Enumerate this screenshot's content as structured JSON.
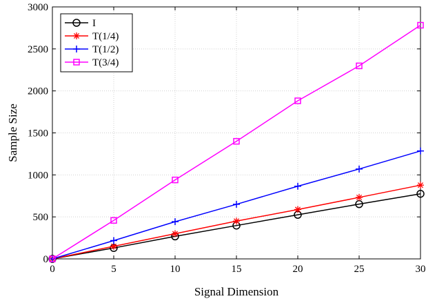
{
  "chart_data": {
    "type": "line",
    "xlabel": "Signal Dimension",
    "ylabel": "Sample Size",
    "xlim": [
      0,
      30
    ],
    "ylim": [
      0,
      3000
    ],
    "xticks": [
      0,
      5,
      10,
      15,
      20,
      25,
      30
    ],
    "yticks": [
      0,
      500,
      1000,
      1500,
      2000,
      2500,
      3000
    ],
    "grid": true,
    "legend_position": "top-left",
    "x": [
      0,
      5,
      10,
      15,
      20,
      25,
      30
    ],
    "series": [
      {
        "name": "I",
        "color": "#000000",
        "marker": "circle",
        "values": [
          0,
          130,
          268,
          397,
          525,
          652,
          775
        ]
      },
      {
        "name": "T(1/4)",
        "color": "#ff0000",
        "marker": "asterisk",
        "values": [
          0,
          150,
          300,
          450,
          588,
          732,
          878
        ]
      },
      {
        "name": "T(1/2)",
        "color": "#0000ff",
        "marker": "plus",
        "values": [
          0,
          218,
          443,
          650,
          865,
          1070,
          1285
        ]
      },
      {
        "name": "T(3/4)",
        "color": "#ff00ff",
        "marker": "square",
        "values": [
          0,
          458,
          940,
          1400,
          1882,
          2298,
          2782
        ]
      }
    ]
  }
}
